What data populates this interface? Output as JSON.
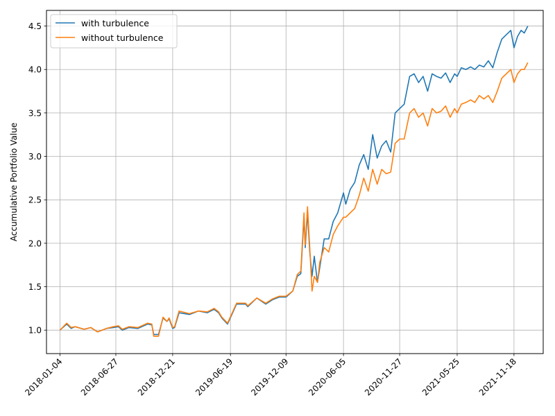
{
  "chart_data": {
    "type": "line",
    "title": "",
    "xlabel": "",
    "ylabel": "Accumulative Portfolio Value",
    "x_type": "date",
    "xlim": [
      "2017-11-23",
      "2022-02-17"
    ],
    "ylim": [
      0.73,
      4.68
    ],
    "yticks": [
      1.0,
      1.5,
      2.0,
      2.5,
      3.0,
      3.5,
      4.0,
      4.5
    ],
    "ytick_labels": [
      "1.0",
      "1.5",
      "2.0",
      "2.5",
      "3.0",
      "3.5",
      "4.0",
      "4.5"
    ],
    "xticks": [
      "2018-01-04",
      "2018-06-27",
      "2018-12-21",
      "2019-06-19",
      "2019-12-09",
      "2020-06-05",
      "2020-11-27",
      "2021-05-25",
      "2021-11-18"
    ],
    "grid": true,
    "legend_position": "top-left",
    "series": [
      {
        "name": "with turbulence",
        "color": "#1f77b4",
        "x": [
          "2018-01-04",
          "2018-01-25",
          "2018-02-08",
          "2018-02-20",
          "2018-03-20",
          "2018-04-10",
          "2018-05-01",
          "2018-05-29",
          "2018-06-19",
          "2018-07-05",
          "2018-07-17",
          "2018-08-07",
          "2018-09-04",
          "2018-10-04",
          "2018-10-17",
          "2018-10-23",
          "2018-11-07",
          "2018-11-21",
          "2018-12-03",
          "2018-12-10",
          "2018-12-21",
          "2018-12-27",
          "2019-01-10",
          "2019-02-11",
          "2019-03-11",
          "2019-04-08",
          "2019-04-29",
          "2019-05-13",
          "2019-05-23",
          "2019-06-10",
          "2019-07-08",
          "2019-08-05",
          "2019-08-12",
          "2019-09-09",
          "2019-10-07",
          "2019-10-28",
          "2019-11-18",
          "2019-12-09",
          "2019-12-30",
          "2020-01-13",
          "2020-01-24",
          "2020-02-03",
          "2020-02-07",
          "2020-02-14",
          "2020-02-21",
          "2020-02-28",
          "2020-03-06",
          "2020-03-16",
          "2020-03-23",
          "2020-04-06",
          "2020-04-20",
          "2020-05-04",
          "2020-05-18",
          "2020-06-05",
          "2020-06-12",
          "2020-06-26",
          "2020-07-10",
          "2020-07-24",
          "2020-08-07",
          "2020-08-21",
          "2020-09-04",
          "2020-09-18",
          "2020-10-02",
          "2020-10-16",
          "2020-10-30",
          "2020-11-13",
          "2020-11-27",
          "2020-12-11",
          "2020-12-28",
          "2021-01-11",
          "2021-01-25",
          "2021-02-08",
          "2021-02-22",
          "2021-03-08",
          "2021-03-22",
          "2021-04-05",
          "2021-04-19",
          "2021-05-03",
          "2021-05-17",
          "2021-05-25",
          "2021-06-07",
          "2021-06-21",
          "2021-07-06",
          "2021-07-19",
          "2021-08-02",
          "2021-08-16",
          "2021-08-30",
          "2021-09-13",
          "2021-09-27",
          "2021-10-11",
          "2021-10-25",
          "2021-11-08",
          "2021-11-18",
          "2021-11-29",
          "2021-12-10",
          "2021-12-20",
          "2021-12-31"
        ],
        "values": [
          1.0,
          1.07,
          1.02,
          1.04,
          1.01,
          1.03,
          0.98,
          1.02,
          1.03,
          1.04,
          1.0,
          1.03,
          1.02,
          1.07,
          1.06,
          0.95,
          0.95,
          1.14,
          1.1,
          1.13,
          1.02,
          1.03,
          1.2,
          1.18,
          1.22,
          1.2,
          1.24,
          1.2,
          1.14,
          1.07,
          1.3,
          1.3,
          1.27,
          1.37,
          1.3,
          1.35,
          1.38,
          1.38,
          1.45,
          1.62,
          1.65,
          2.3,
          1.95,
          2.35,
          1.9,
          1.62,
          1.85,
          1.55,
          1.72,
          2.05,
          2.05,
          2.25,
          2.35,
          2.58,
          2.45,
          2.62,
          2.7,
          2.9,
          3.02,
          2.85,
          3.25,
          2.98,
          3.12,
          3.18,
          3.05,
          3.5,
          3.55,
          3.6,
          3.92,
          3.95,
          3.85,
          3.92,
          3.75,
          3.95,
          3.92,
          3.9,
          3.96,
          3.85,
          3.95,
          3.92,
          4.02,
          4.0,
          4.03,
          4.0,
          4.05,
          4.03,
          4.1,
          4.02,
          4.2,
          4.35,
          4.4,
          4.45,
          4.25,
          4.38,
          4.45,
          4.42,
          4.5
        ]
      },
      {
        "name": "without turbulence",
        "color": "#ff7f0e",
        "x": [
          "2018-01-04",
          "2018-01-25",
          "2018-02-08",
          "2018-02-20",
          "2018-03-20",
          "2018-04-10",
          "2018-05-01",
          "2018-05-29",
          "2018-06-19",
          "2018-07-05",
          "2018-07-17",
          "2018-08-07",
          "2018-09-04",
          "2018-10-04",
          "2018-10-17",
          "2018-10-23",
          "2018-11-07",
          "2018-11-21",
          "2018-12-03",
          "2018-12-10",
          "2018-12-21",
          "2018-12-27",
          "2019-01-10",
          "2019-02-11",
          "2019-03-11",
          "2019-04-08",
          "2019-04-29",
          "2019-05-13",
          "2019-05-23",
          "2019-06-10",
          "2019-07-08",
          "2019-08-05",
          "2019-08-12",
          "2019-09-09",
          "2019-10-07",
          "2019-10-28",
          "2019-11-18",
          "2019-12-09",
          "2019-12-30",
          "2020-01-13",
          "2020-01-24",
          "2020-02-03",
          "2020-02-07",
          "2020-02-14",
          "2020-02-21",
          "2020-02-28",
          "2020-03-06",
          "2020-03-16",
          "2020-03-23",
          "2020-04-06",
          "2020-04-20",
          "2020-05-04",
          "2020-05-18",
          "2020-06-05",
          "2020-06-12",
          "2020-06-26",
          "2020-07-10",
          "2020-07-24",
          "2020-08-07",
          "2020-08-21",
          "2020-09-04",
          "2020-09-18",
          "2020-10-02",
          "2020-10-16",
          "2020-10-30",
          "2020-11-13",
          "2020-11-27",
          "2020-12-11",
          "2020-12-28",
          "2021-01-11",
          "2021-01-25",
          "2021-02-08",
          "2021-02-22",
          "2021-03-08",
          "2021-03-22",
          "2021-04-05",
          "2021-04-19",
          "2021-05-03",
          "2021-05-17",
          "2021-05-25",
          "2021-06-07",
          "2021-06-21",
          "2021-07-06",
          "2021-07-19",
          "2021-08-02",
          "2021-08-16",
          "2021-08-30",
          "2021-09-13",
          "2021-09-27",
          "2021-10-11",
          "2021-10-25",
          "2021-11-08",
          "2021-11-18",
          "2021-11-29",
          "2021-12-10",
          "2021-12-20",
          "2021-12-31"
        ],
        "values": [
          1.0,
          1.08,
          1.03,
          1.04,
          1.01,
          1.03,
          0.98,
          1.02,
          1.04,
          1.05,
          1.01,
          1.04,
          1.03,
          1.08,
          1.07,
          0.93,
          0.93,
          1.15,
          1.1,
          1.14,
          1.03,
          1.04,
          1.22,
          1.19,
          1.22,
          1.21,
          1.25,
          1.21,
          1.15,
          1.08,
          1.31,
          1.31,
          1.28,
          1.37,
          1.31,
          1.36,
          1.39,
          1.39,
          1.45,
          1.64,
          1.68,
          2.35,
          1.98,
          2.42,
          1.95,
          1.45,
          1.62,
          1.55,
          1.78,
          1.95,
          1.9,
          2.1,
          2.2,
          2.3,
          2.3,
          2.35,
          2.4,
          2.55,
          2.75,
          2.6,
          2.85,
          2.68,
          2.85,
          2.8,
          2.82,
          3.15,
          3.2,
          3.2,
          3.5,
          3.55,
          3.45,
          3.5,
          3.35,
          3.55,
          3.5,
          3.52,
          3.58,
          3.45,
          3.55,
          3.5,
          3.6,
          3.62,
          3.65,
          3.62,
          3.7,
          3.66,
          3.7,
          3.62,
          3.75,
          3.9,
          3.95,
          4.0,
          3.85,
          3.95,
          4.0,
          4.0,
          4.08
        ]
      }
    ]
  }
}
